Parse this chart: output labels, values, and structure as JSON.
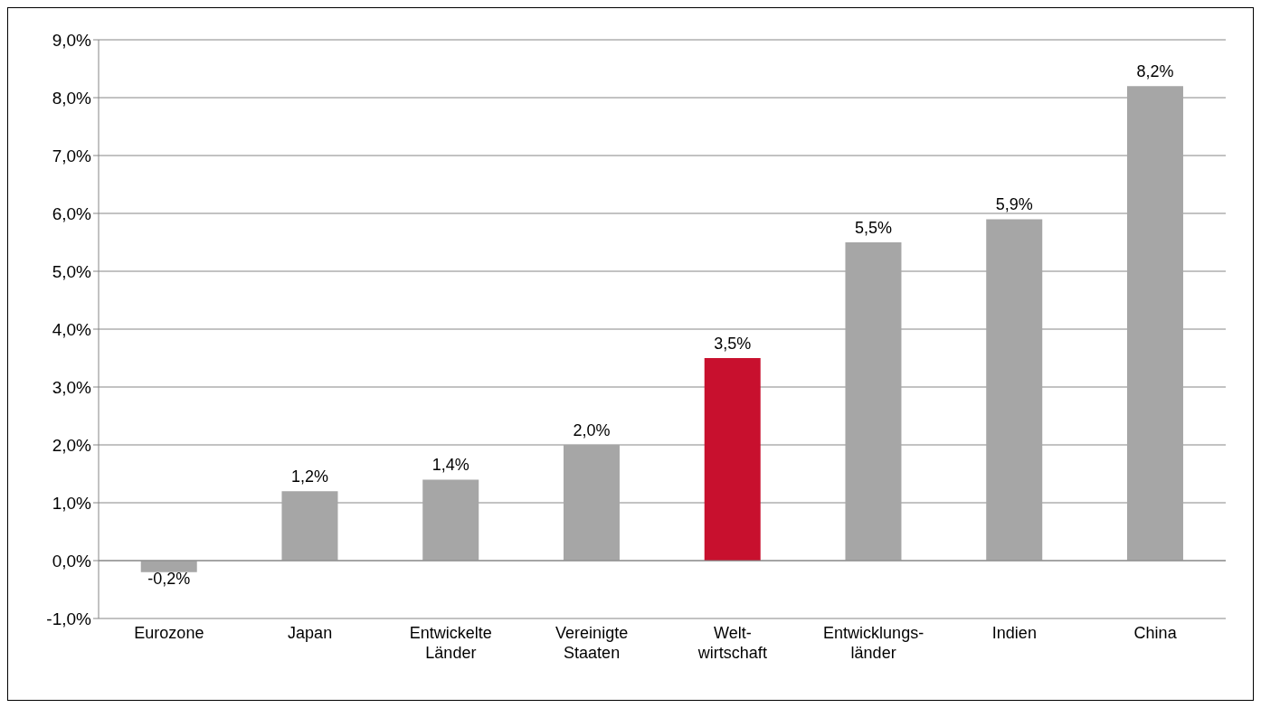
{
  "chart_data": {
    "type": "bar",
    "categories": [
      "Eurozone",
      "Japan",
      "Entwickelte\nLänder",
      "Vereinigte\nStaaten",
      "Welt-\nwirtschaft",
      "Entwicklungs-\nländer",
      "Indien",
      "China"
    ],
    "values": [
      -0.2,
      1.2,
      1.4,
      2.0,
      3.5,
      5.5,
      5.9,
      8.2
    ],
    "colors": [
      "#a6a6a6",
      "#a6a6a6",
      "#a6a6a6",
      "#a6a6a6",
      "#c8102e",
      "#a6a6a6",
      "#a6a6a6",
      "#a6a6a6"
    ],
    "value_labels": [
      "-0,2%",
      "1,2%",
      "1,4%",
      "2,0%",
      "3,5%",
      "5,5%",
      "5,9%",
      "8,2%"
    ],
    "ylim": [
      -1,
      9
    ],
    "yticks": [
      {
        "value": -1,
        "label": "-1,0%"
      },
      {
        "value": 0,
        "label": "0,0%"
      },
      {
        "value": 1,
        "label": "1,0%"
      },
      {
        "value": 2,
        "label": "2,0%"
      },
      {
        "value": 3,
        "label": "3,0%"
      },
      {
        "value": 4,
        "label": "4,0%"
      },
      {
        "value": 5,
        "label": "5,0%"
      },
      {
        "value": 6,
        "label": "6,0%"
      },
      {
        "value": 7,
        "label": "7,0%"
      },
      {
        "value": 8,
        "label": "8,0%"
      },
      {
        "value": 9,
        "label": "9,0%"
      }
    ],
    "grid": "y"
  }
}
